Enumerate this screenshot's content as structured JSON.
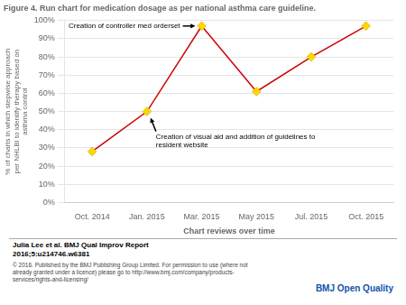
{
  "chart_data": {
    "type": "line",
    "title": "Figure 4. Run chart for medication dosage as per national asthma care guideline.",
    "x_label": "Chart reviews over time",
    "y_label": "% of charts in which stepwise approach\nper NHLBI to identify therapy based on\nasthma control",
    "categories": [
      "Oct. 2014",
      "Jan. 2015",
      "Mar. 2015",
      "May 2015",
      "Jul. 2015",
      "Oct. 2015"
    ],
    "values": [
      28,
      50,
      97,
      61,
      80,
      97
    ],
    "color": "#CC0000",
    "marker": "diamond",
    "marker_color": "#FFD700",
    "ylim": [
      0,
      100
    ],
    "yticks": [
      {
        "value": 0,
        "label": "0%"
      },
      {
        "value": 10,
        "label": "10%"
      },
      {
        "value": 20,
        "label": "20%"
      },
      {
        "value": 30,
        "label": "30%"
      },
      {
        "value": 40,
        "label": "40%"
      },
      {
        "value": 50,
        "label": "50%"
      },
      {
        "value": 60,
        "label": "60%"
      },
      {
        "value": 70,
        "label": "70%"
      },
      {
        "value": 80,
        "label": "80%"
      },
      {
        "value": 90,
        "label": "90%"
      },
      {
        "value": 100,
        "label": "100%"
      }
    ],
    "grid": true,
    "annotations": [
      {
        "text": "Creation of controller med orderset",
        "x": "Mar. 2015",
        "y": 97
      },
      {
        "text": "Creation of visual aid and addition of guidelines to\nresident website",
        "x": "Jan. 2015",
        "y": 50
      }
    ],
    "footer": [
      "Julia Lee et al. BMJ Qual Improv Report\n2016;5:u214746.w6381",
      "© 2016. Published by the BMJ Publishing Group Limited. For permission to use (where not\nalready granted under a licence) please go to http://www.bmj.com/company/products-\nservices/rights-and-licensing/",
      "BMJ Open Quality"
    ]
  }
}
